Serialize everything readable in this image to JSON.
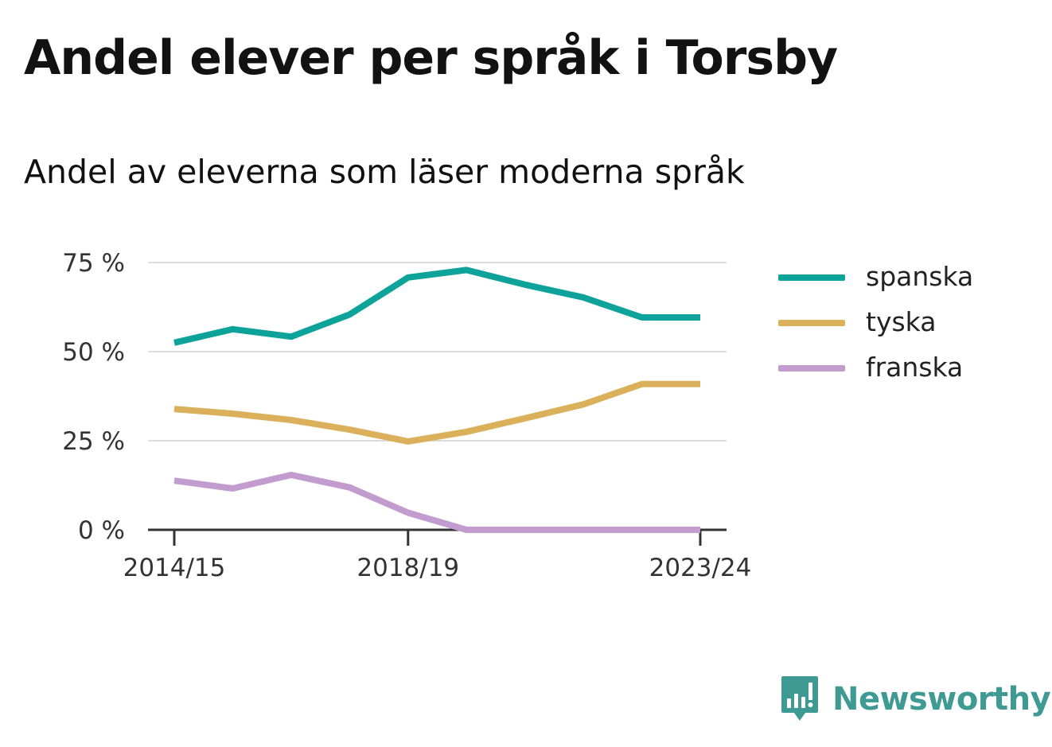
{
  "header": {
    "title": "Andel elever per språk i Torsby",
    "subtitle": "Andel av eleverna som läser moderna språk"
  },
  "brand": {
    "name": "Newsworthy",
    "icon": "newsworthy-bar-chart-icon",
    "color": "#3f9a94"
  },
  "chart_data": {
    "type": "line",
    "x": [
      "2014/15",
      "2015/16",
      "2016/17",
      "2017/18",
      "2018/19",
      "2019/20",
      "2020/21",
      "2021/22",
      "2022/23",
      "2023/24"
    ],
    "x_tick_labels": [
      "2014/15",
      "2018/19",
      "2023/24"
    ],
    "ylim": [
      0,
      75
    ],
    "y_ticks": [
      0,
      25,
      50,
      75
    ],
    "y_tick_labels": [
      "0 %",
      "25 %",
      "50 %",
      "75 %"
    ],
    "grid": true,
    "legend_position": "right",
    "series": [
      {
        "name": "spanska",
        "color": "#0ea39a",
        "values": [
          52.5,
          56.3,
          54.2,
          60.4,
          70.8,
          72.9,
          68.8,
          65.2,
          59.6,
          59.6
        ]
      },
      {
        "name": "tyska",
        "color": "#dbb05b",
        "values": [
          33.9,
          32.6,
          30.8,
          28.1,
          24.8,
          27.5,
          31.3,
          35.2,
          40.9,
          40.9
        ]
      },
      {
        "name": "franska",
        "color": "#c39ccf",
        "values": [
          13.8,
          11.6,
          15.4,
          11.9,
          4.8,
          0,
          0,
          0,
          0,
          0
        ]
      }
    ]
  }
}
